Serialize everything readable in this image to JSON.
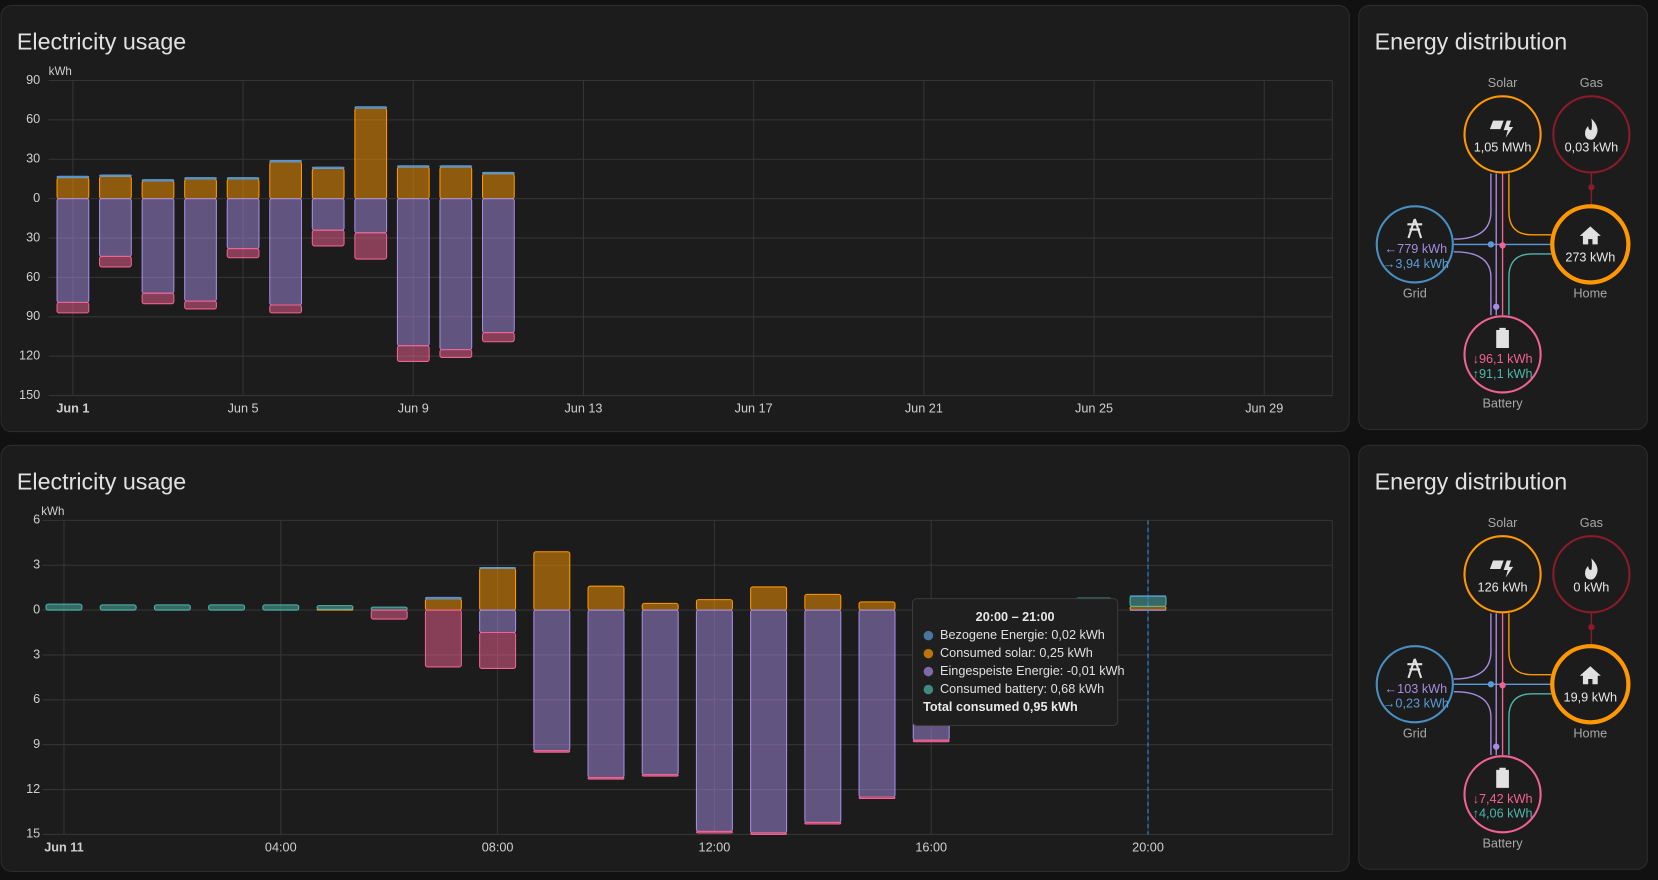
{
  "chart_data": [
    {
      "type": "bar",
      "title": "Electricity usage",
      "y_unit": "kWh",
      "x": [
        1,
        2,
        3,
        4,
        5,
        6,
        7,
        8,
        9,
        10,
        11
      ],
      "xlim": [
        0.43,
        30.6
      ],
      "xticks": [
        {
          "value": 1,
          "label": "Jun 1"
        },
        {
          "value": 5,
          "label": "Jun 5"
        },
        {
          "value": 9,
          "label": "Jun 9"
        },
        {
          "value": 13,
          "label": "Jun 13"
        },
        {
          "value": 17,
          "label": "Jun 17"
        },
        {
          "value": 21,
          "label": "Jun 21"
        },
        {
          "value": 25,
          "label": "Jun 25"
        },
        {
          "value": 29,
          "label": "Jun 29"
        }
      ],
      "ylim": [
        -150,
        90
      ],
      "yticks": [
        90,
        60,
        30,
        0,
        {
          "value": -30,
          "label": "30"
        },
        {
          "value": -60,
          "label": "60"
        },
        {
          "value": -90,
          "label": "90"
        },
        {
          "value": -120,
          "label": "120"
        },
        {
          "value": -150,
          "label": "150"
        }
      ],
      "grid": true,
      "series": [
        {
          "name": "Consumed solar",
          "color": "#ff9800",
          "values": [
            16,
            17,
            13.5,
            15,
            15,
            28,
            23,
            69,
            24,
            24,
            19
          ]
        },
        {
          "name": "Bezogene Energie",
          "color": "#5b9bd5",
          "values": [
            1,
            1,
            1,
            1,
            1,
            1,
            1,
            1,
            1,
            1,
            1
          ]
        },
        {
          "name": "Eingespeiste Energie",
          "color": "#a58ce0",
          "values": [
            -79,
            -44,
            -72,
            -78,
            -38,
            -81,
            -24,
            -26,
            -112,
            -115,
            -102
          ]
        },
        {
          "color": "#f06292",
          "values": [
            -8,
            -8,
            -8,
            -6,
            -7,
            -6,
            -12,
            -20,
            -12,
            -6,
            -7
          ]
        }
      ]
    },
    {
      "type": "bar",
      "title": "Electricity usage",
      "y_unit": "kWh",
      "x": [
        0,
        1,
        2,
        3,
        4,
        5,
        6,
        7,
        8,
        9,
        10,
        11,
        12,
        13,
        14,
        15,
        16,
        17,
        18,
        19,
        20
      ],
      "xlim": [
        -0.4,
        23.4
      ],
      "xticks": [
        {
          "value": 0,
          "label": "Jun 11"
        },
        {
          "value": 4,
          "label": "04:00"
        },
        {
          "value": 8,
          "label": "08:00"
        },
        {
          "value": 12,
          "label": "12:00"
        },
        {
          "value": 16,
          "label": "16:00"
        },
        {
          "value": 20,
          "label": "20:00"
        }
      ],
      "ylim": [
        -15,
        6
      ],
      "yticks": [
        6,
        3,
        0,
        {
          "value": -3,
          "label": "3"
        },
        {
          "value": -6,
          "label": "6"
        },
        {
          "value": -9,
          "label": "9"
        },
        {
          "value": -12,
          "label": "12"
        },
        {
          "value": -15,
          "label": "15"
        }
      ],
      "grid": true,
      "series": [
        {
          "name": "Consumed solar",
          "color": "#ff9800",
          "values": [
            0,
            0,
            0,
            0,
            0,
            0.05,
            0,
            0.75,
            2.8,
            3.9,
            1.6,
            0.45,
            0.7,
            1.55,
            1.05,
            0.55,
            0.3,
            0,
            0,
            0,
            0.25
          ]
        },
        {
          "name": "Consumed battery",
          "color": "#4db6ac",
          "values": [
            0.4,
            0.35,
            0.35,
            0.35,
            0.35,
            0.25,
            0.2,
            0,
            0,
            0,
            0,
            0,
            0,
            0,
            0,
            0,
            0,
            0.4,
            0.6,
            0.8,
            0.68
          ]
        },
        {
          "name": "Bezogene Energie",
          "color": "#5b9bd5",
          "values": [
            0,
            0,
            0,
            0,
            0,
            0,
            0,
            0.1,
            0.05,
            0,
            0,
            0,
            0,
            0,
            0,
            0,
            0,
            0,
            0,
            0,
            0.02
          ]
        },
        {
          "name": "Eingespeiste Energie",
          "color": "#a58ce0",
          "values": [
            0,
            0,
            0,
            0,
            0,
            0,
            0,
            0,
            -1.5,
            -9.4,
            -11.2,
            -11,
            -14.8,
            -14.9,
            -14.2,
            -12.5,
            -8.7,
            0,
            0,
            0,
            -0.01
          ]
        },
        {
          "color": "#f06292",
          "values": [
            0,
            0,
            0,
            0,
            0,
            0,
            -0.6,
            -3.8,
            -2.4,
            -0.1,
            -0.1,
            -0.1,
            -0.1,
            -0.1,
            -0.1,
            -0.1,
            -0.1,
            0,
            0,
            0,
            0
          ]
        }
      ],
      "tooltip": {
        "title": "20:00 – 21:00",
        "items": [
          {
            "text": "Bezogene Energie: 0,02 kWh",
            "color": "#5b9bd5"
          },
          {
            "text": "Consumed solar: 0,25 kWh",
            "color": "#ff9800"
          },
          {
            "text": "Eingespeiste Energie: -0,01 kWh",
            "color": "#a58ce0"
          },
          {
            "text": "Consumed battery: 0,68 kWh",
            "color": "#4db6ac"
          }
        ],
        "total": "Total consumed 0,95 kWh"
      }
    }
  ],
  "distribution": [
    {
      "title": "Energy distribution",
      "solar": {
        "label": "Solar",
        "value": "1,05 MWh"
      },
      "gas": {
        "label": "Gas",
        "value": "0,03 kWh"
      },
      "grid": {
        "label": "Grid",
        "in": "←779 kWh",
        "out": "→3,94 kWh"
      },
      "home": {
        "label": "Home",
        "value": "273 kWh"
      },
      "battery": {
        "label": "Battery",
        "in": "↓96,1 kWh",
        "out": "↑91,1 kWh"
      }
    },
    {
      "title": "Energy distribution",
      "solar": {
        "label": "Solar",
        "value": "126 kWh"
      },
      "gas": {
        "label": "Gas",
        "value": "0 kWh"
      },
      "grid": {
        "label": "Grid",
        "in": "←103 kWh",
        "out": "→0,23 kWh"
      },
      "home": {
        "label": "Home",
        "value": "19,9 kWh"
      },
      "battery": {
        "label": "Battery",
        "in": "↓7,42 kWh",
        "out": "↑4,06 kWh"
      }
    }
  ]
}
